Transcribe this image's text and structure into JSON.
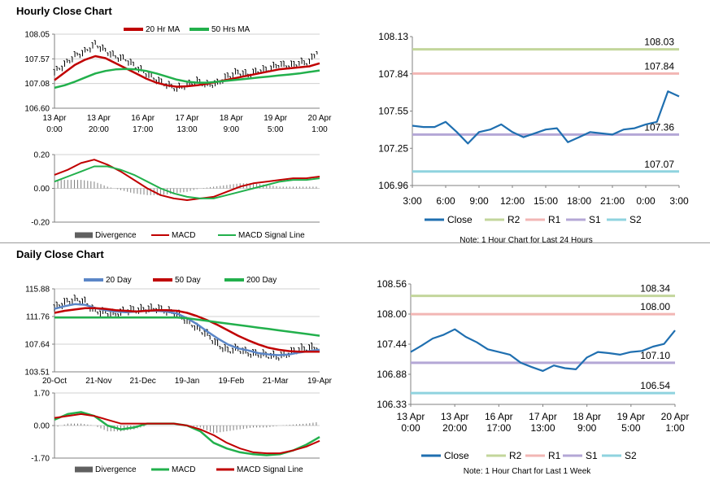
{
  "sections": {
    "hourly_title": "Hourly Close Chart",
    "daily_title": "Daily Close Chart"
  },
  "colors": {
    "ma_short": "#c00000",
    "ma_long": "#22b04c",
    "ma_blue": "#5b86c7",
    "divergence": "#808080",
    "close": "#1f6fb0",
    "r2": "#c3d69b",
    "r1": "#f2b6b4",
    "s1": "#b4a7d6",
    "s2": "#8fd3df"
  },
  "chart_data": [
    {
      "id": "hourly_price",
      "type": "line",
      "legend": [
        "20 Hr MA",
        "50 Hrs MA"
      ],
      "yticks": [
        "108.05",
        "107.57",
        "107.08",
        "106.60"
      ],
      "ylim": [
        106.6,
        108.05
      ],
      "xticks": [
        [
          "13 Apr",
          "0:00"
        ],
        [
          "13 Apr",
          "20:00"
        ],
        [
          "16 Apr",
          "17:00"
        ],
        [
          "17 Apr",
          "13:00"
        ],
        [
          "18 Apr",
          "9:00"
        ],
        [
          "19 Apr",
          "5:00"
        ],
        [
          "20 Apr",
          "1:00"
        ]
      ],
      "close": [
        107.3,
        107.45,
        107.62,
        107.7,
        107.85,
        107.72,
        107.6,
        107.55,
        107.4,
        107.28,
        107.15,
        107.05,
        106.98,
        107.05,
        107.12,
        107.05,
        107.08,
        107.22,
        107.3,
        107.25,
        107.32,
        107.36,
        107.45,
        107.42,
        107.48,
        107.5,
        107.78
      ],
      "series": [
        {
          "name": "20 Hr MA",
          "values": [
            107.15,
            107.3,
            107.45,
            107.55,
            107.62,
            107.58,
            107.48,
            107.38,
            107.28,
            107.18,
            107.1,
            107.05,
            107.02,
            107.03,
            107.05,
            107.08,
            107.12,
            107.16,
            107.2,
            107.24,
            107.28,
            107.32,
            107.36,
            107.38,
            107.4,
            107.42,
            107.48
          ]
        },
        {
          "name": "50 Hrs MA",
          "values": [
            107.0,
            107.05,
            107.12,
            107.2,
            107.28,
            107.33,
            107.36,
            107.37,
            107.36,
            107.33,
            107.28,
            107.22,
            107.16,
            107.12,
            107.1,
            107.1,
            107.12,
            107.14,
            107.16,
            107.18,
            107.2,
            107.22,
            107.24,
            107.26,
            107.28,
            107.31,
            107.34
          ]
        }
      ]
    },
    {
      "id": "hourly_macd",
      "type": "line",
      "yticks": [
        "0.20",
        "0.00",
        "-0.20"
      ],
      "ylim": [
        -0.2,
        0.2
      ],
      "legend": [
        "Divergence",
        "MACD",
        "MACD Signal Line"
      ],
      "series": [
        {
          "name": "MACD",
          "values": [
            0.08,
            0.11,
            0.15,
            0.17,
            0.14,
            0.1,
            0.05,
            0.0,
            -0.04,
            -0.06,
            -0.07,
            -0.06,
            -0.05,
            -0.02,
            0.01,
            0.03,
            0.04,
            0.05,
            0.06,
            0.06,
            0.07
          ]
        },
        {
          "name": "MACD Signal Line",
          "values": [
            0.04,
            0.07,
            0.1,
            0.13,
            0.13,
            0.11,
            0.08,
            0.04,
            0.0,
            -0.03,
            -0.05,
            -0.06,
            -0.06,
            -0.04,
            -0.02,
            0.0,
            0.02,
            0.04,
            0.05,
            0.05,
            0.06
          ]
        },
        {
          "name": "Divergence",
          "values": [
            0.05,
            0.05,
            0.05,
            0.04,
            0.01,
            -0.01,
            -0.03,
            -0.04,
            -0.04,
            -0.03,
            -0.02,
            0.0,
            0.01,
            0.02,
            0.03,
            0.03,
            0.02,
            0.01,
            0.01,
            0.01,
            0.01
          ]
        }
      ]
    },
    {
      "id": "hourly_24h",
      "type": "line",
      "yticks": [
        "108.13",
        "107.84",
        "107.55",
        "107.25",
        "106.96"
      ],
      "ylim": [
        106.96,
        108.13
      ],
      "xticks": [
        "3:00",
        "6:00",
        "9:00",
        "12:00",
        "15:00",
        "18:00",
        "21:00",
        "0:00",
        "3:00"
      ],
      "levels": [
        {
          "name": "R2",
          "value": 108.03,
          "label": "108.03"
        },
        {
          "name": "R1",
          "value": 107.84,
          "label": "107.84"
        },
        {
          "name": "S1",
          "value": 107.36,
          "label": "107.36"
        },
        {
          "name": "S2",
          "value": 107.07,
          "label": "107.07"
        }
      ],
      "close": [
        107.43,
        107.42,
        107.42,
        107.46,
        107.38,
        107.29,
        107.38,
        107.4,
        107.44,
        107.38,
        107.34,
        107.37,
        107.4,
        107.41,
        107.3,
        107.34,
        107.38,
        107.37,
        107.36,
        107.4,
        107.41,
        107.44,
        107.46,
        107.7,
        107.66
      ],
      "legend": [
        "Close",
        "R2",
        "R1",
        "S1",
        "S2"
      ],
      "note": "Note: 1 Hour Chart for Last 24 Hours"
    },
    {
      "id": "daily_price",
      "type": "line",
      "legend": [
        "20 Day",
        "50 Day",
        "200 Day"
      ],
      "yticks": [
        "115.88",
        "111.76",
        "107.64",
        "103.51"
      ],
      "ylim": [
        103.51,
        115.88
      ],
      "xticks": [
        "20-Oct",
        "21-Nov",
        "21-Dec",
        "19-Jan",
        "19-Feb",
        "21-Mar",
        "19-Apr"
      ],
      "close": [
        113.0,
        113.8,
        114.2,
        113.9,
        112.5,
        112.3,
        112.0,
        112.6,
        112.7,
        112.8,
        112.9,
        112.5,
        112.2,
        111.0,
        110.0,
        109.0,
        107.5,
        106.6,
        106.9,
        106.2,
        106.1,
        105.9,
        105.7,
        106.2,
        106.8,
        107.0,
        107.1
      ],
      "series": [
        {
          "name": "20 Day",
          "values": [
            112.9,
            113.3,
            113.6,
            113.5,
            113.0,
            112.7,
            112.5,
            112.4,
            112.5,
            112.6,
            112.6,
            112.5,
            112.2,
            111.5,
            110.6,
            109.5,
            108.5,
            107.6,
            107.0,
            106.7,
            106.3,
            106.1,
            106.0,
            106.1,
            106.4,
            106.6,
            106.8
          ]
        },
        {
          "name": "50 Day",
          "values": [
            112.3,
            112.6,
            112.8,
            113.0,
            113.0,
            112.9,
            112.7,
            112.6,
            112.5,
            112.6,
            112.7,
            112.7,
            112.6,
            112.3,
            111.8,
            111.2,
            110.5,
            109.7,
            108.9,
            108.2,
            107.6,
            107.1,
            106.8,
            106.6,
            106.5,
            106.5,
            106.5
          ]
        },
        {
          "name": "200 Day",
          "values": [
            111.6,
            111.6,
            111.6,
            111.6,
            111.6,
            111.6,
            111.6,
            111.6,
            111.6,
            111.6,
            111.6,
            111.6,
            111.6,
            111.5,
            111.3,
            111.1,
            110.9,
            110.7,
            110.5,
            110.3,
            110.1,
            109.9,
            109.7,
            109.5,
            109.3,
            109.1,
            108.9
          ]
        }
      ]
    },
    {
      "id": "daily_macd",
      "type": "line",
      "yticks": [
        "1.70",
        "0.00",
        "-1.70"
      ],
      "ylim": [
        -1.7,
        1.7
      ],
      "legend": [
        "Divergence",
        "MACD",
        "MACD Signal Line"
      ],
      "series": [
        {
          "name": "MACD",
          "values": [
            0.3,
            0.6,
            0.7,
            0.5,
            0.0,
            -0.2,
            -0.1,
            0.1,
            0.1,
            0.1,
            0.0,
            -0.3,
            -0.9,
            -1.2,
            -1.4,
            -1.5,
            -1.55,
            -1.5,
            -1.3,
            -1.0,
            -0.6
          ]
        },
        {
          "name": "MACD Signal Line",
          "values": [
            0.4,
            0.5,
            0.6,
            0.5,
            0.3,
            0.1,
            0.1,
            0.1,
            0.1,
            0.1,
            0.0,
            -0.2,
            -0.5,
            -0.9,
            -1.2,
            -1.4,
            -1.45,
            -1.45,
            -1.3,
            -1.1,
            -0.8
          ]
        },
        {
          "name": "Divergence",
          "values": [
            -0.1,
            0.1,
            0.1,
            0.0,
            -0.3,
            -0.3,
            -0.2,
            0.0,
            0.0,
            0.0,
            0.0,
            -0.1,
            -0.4,
            -0.3,
            -0.2,
            -0.1,
            -0.1,
            0.0,
            0.05,
            0.1,
            0.2
          ]
        }
      ]
    },
    {
      "id": "hourly_week",
      "type": "line",
      "yticks": [
        "108.56",
        "108.00",
        "107.44",
        "106.88",
        "106.33"
      ],
      "ylim": [
        106.33,
        108.56
      ],
      "xticks": [
        [
          "13 Apr",
          "0:00"
        ],
        [
          "13 Apr",
          "20:00"
        ],
        [
          "16 Apr",
          "17:00"
        ],
        [
          "17 Apr",
          "13:00"
        ],
        [
          "18 Apr",
          "9:00"
        ],
        [
          "19 Apr",
          "5:00"
        ],
        [
          "20 Apr",
          "1:00"
        ]
      ],
      "levels": [
        {
          "name": "R2",
          "value": 108.34,
          "label": "108.34"
        },
        {
          "name": "R1",
          "value": 108.0,
          "label": "108.00"
        },
        {
          "name": "S1",
          "value": 107.1,
          "label": "107.10"
        },
        {
          "name": "S2",
          "value": 106.54,
          "label": "106.54"
        }
      ],
      "close": [
        107.3,
        107.42,
        107.55,
        107.62,
        107.72,
        107.58,
        107.48,
        107.35,
        107.3,
        107.25,
        107.1,
        107.02,
        106.95,
        107.05,
        107.0,
        106.98,
        107.2,
        107.3,
        107.28,
        107.25,
        107.3,
        107.32,
        107.4,
        107.45,
        107.7
      ],
      "legend": [
        "Close",
        "R2",
        "R1",
        "S1",
        "S2"
      ],
      "note": "Note: 1 Hour Chart for Last 1 Week"
    }
  ]
}
